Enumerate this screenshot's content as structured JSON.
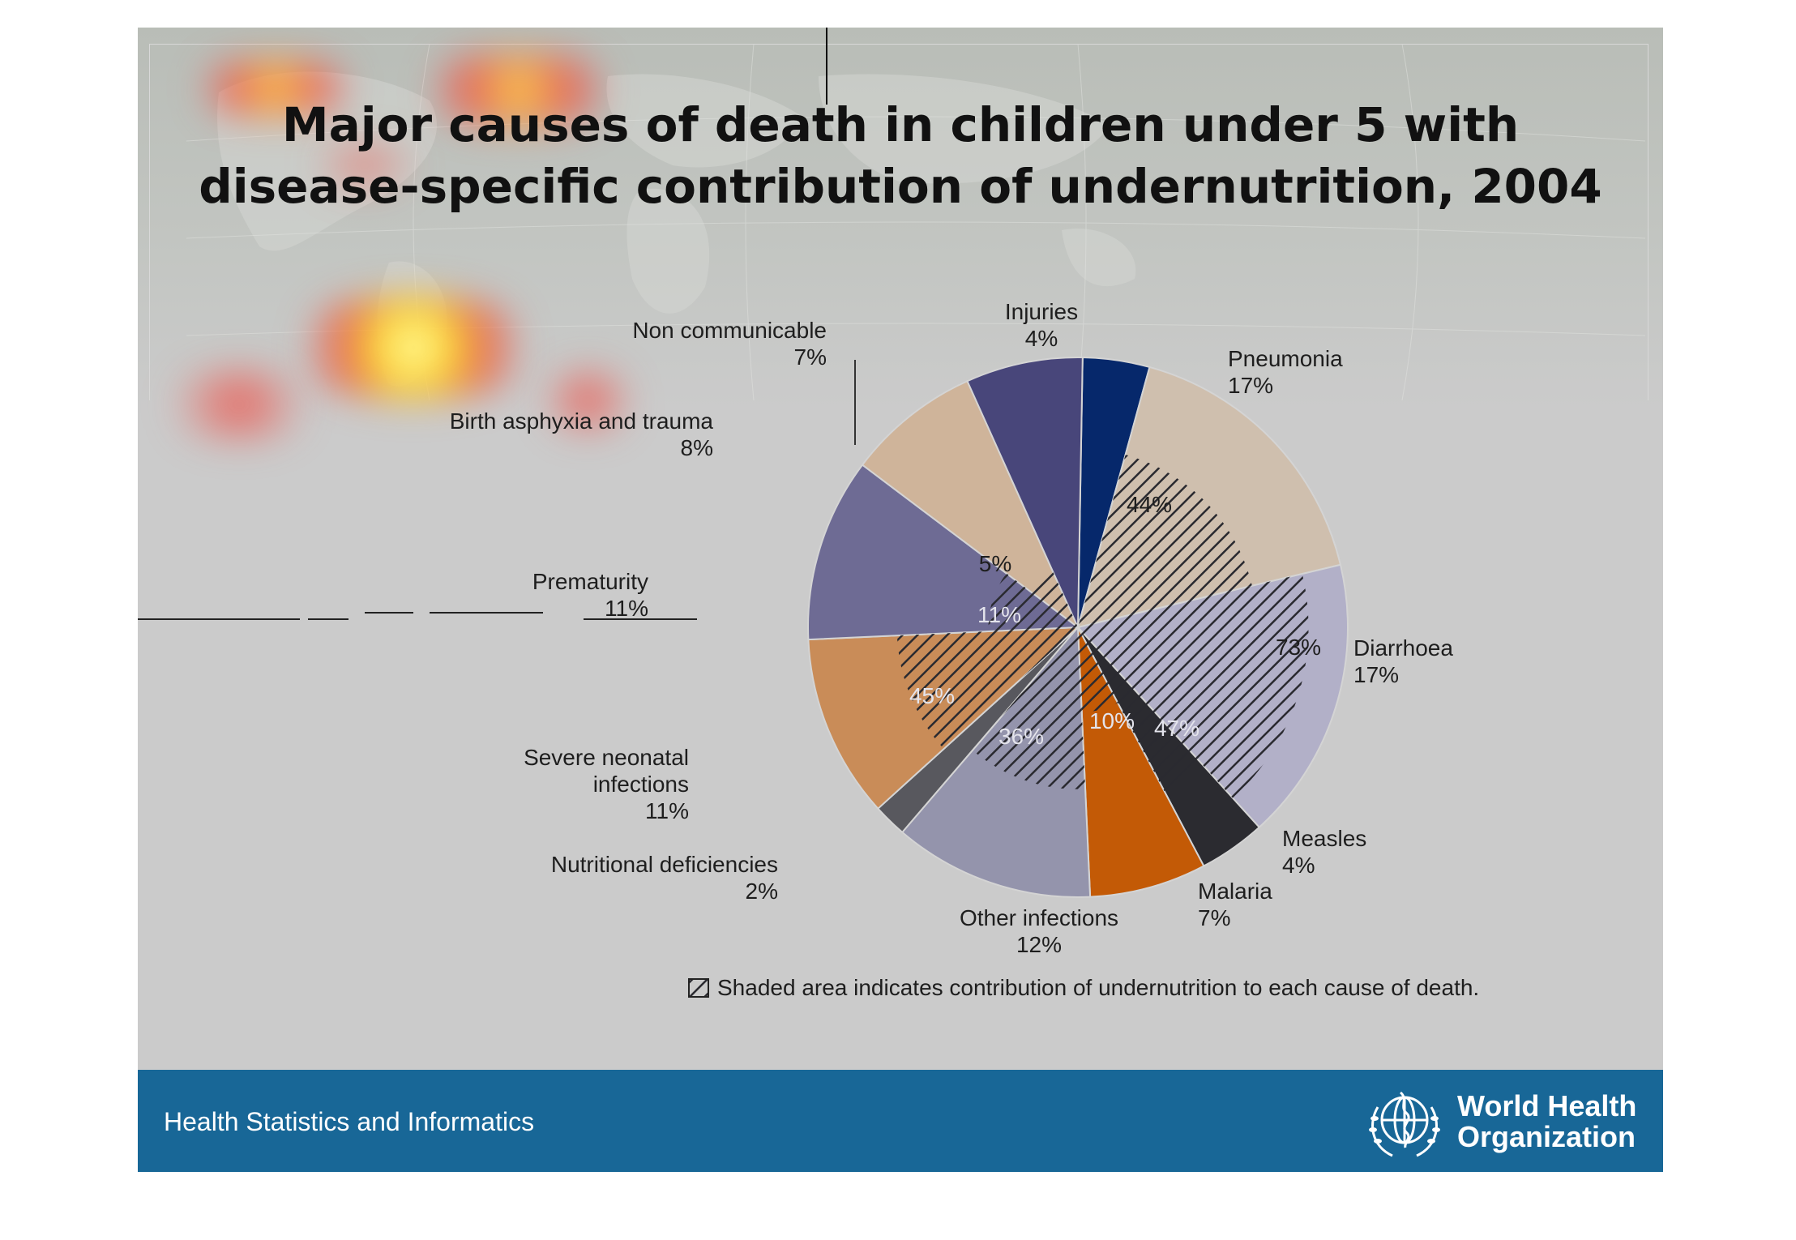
{
  "title_lines": [
    "Major causes of death in children under 5 with",
    "disease-specific contribution of undernutrition, 2004"
  ],
  "footer": {
    "program": "Health Statistics and Informatics",
    "org_lines": [
      "World Health",
      "Organization"
    ]
  },
  "chart_data": {
    "type": "pie",
    "title": "Major causes of death in children under 5 with disease-specific contribution of undernutrition, 2004",
    "unit": "%",
    "slices": [
      {
        "label": "Injuries",
        "label_lines": [
          "Injuries"
        ],
        "value": 4,
        "value_text": "4%",
        "undernutrition_share": null,
        "color": "#06286b"
      },
      {
        "label": "Pneumonia",
        "label_lines": [
          "Pneumonia"
        ],
        "value": 17,
        "value_text": "17%",
        "undernutrition_share": 44,
        "undernutrition_text": "44%",
        "color": "#cfbfae"
      },
      {
        "label": "Diarrhoea",
        "label_lines": [
          "Diarrhoea"
        ],
        "value": 17,
        "value_text": "17%",
        "undernutrition_share": 73,
        "undernutrition_text": "73%",
        "color": "#b2b0c8"
      },
      {
        "label": "Measles",
        "label_lines": [
          "Measles"
        ],
        "value": 4,
        "value_text": "4%",
        "undernutrition_share": 47,
        "undernutrition_text": "47%",
        "color": "#2b2b30"
      },
      {
        "label": "Malaria",
        "label_lines": [
          "Malaria"
        ],
        "value": 7,
        "value_text": "7%",
        "undernutrition_share": 10,
        "undernutrition_text": "10%",
        "color": "#c35a06"
      },
      {
        "label": "Other infections",
        "label_lines": [
          "Other infections"
        ],
        "value": 12,
        "value_text": "12%",
        "undernutrition_share": 36,
        "undernutrition_text": "36%",
        "color": "#9494ac"
      },
      {
        "label": "Nutritional deficiencies",
        "label_lines": [
          "Nutritional deficiencies"
        ],
        "value": 2,
        "value_text": "2%",
        "undernutrition_share": null,
        "color": "#58585e"
      },
      {
        "label": "Severe neonatal infections",
        "label_lines": [
          "Severe neonatal",
          "infections"
        ],
        "value": 11,
        "value_text": "11%",
        "undernutrition_share": 45,
        "undernutrition_text": "45%",
        "color": "#c98c58"
      },
      {
        "label": "Prematurity",
        "label_lines": [
          "Prematurity"
        ],
        "value": 11,
        "value_text": "11%",
        "undernutrition_share": 11,
        "undernutrition_text": "11%",
        "color": "#6e6b94"
      },
      {
        "label": "Birth asphyxia and trauma",
        "label_lines": [
          "Birth asphyxia and trauma"
        ],
        "value": 8,
        "value_text": "8%",
        "undernutrition_share": 5,
        "undernutrition_text": "5%",
        "color": "#cfb49a"
      },
      {
        "label": "Non communicable",
        "label_lines": [
          "Non communicable"
        ],
        "value": 7,
        "value_text": "7%",
        "undernutrition_share": null,
        "color": "#48467a"
      }
    ],
    "legend": "Shaded area indicates contribution of undernutrition to each cause of death."
  }
}
